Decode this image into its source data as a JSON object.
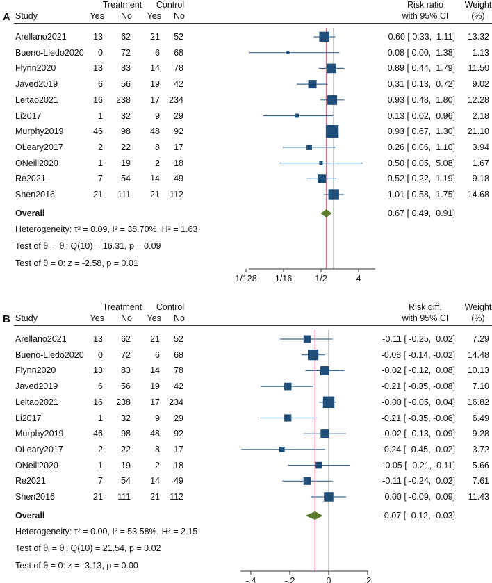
{
  "chart_data": [
    {
      "type": "forest",
      "panel_label": "A",
      "scale": "log2",
      "headers": {
        "study": "Study",
        "treatment": "Treatment",
        "control": "Control",
        "yes": "Yes",
        "no": "No",
        "effect_line1": "Risk ratio",
        "effect_line2": "with 95% CI",
        "weight_line1": "Weight",
        "weight_line2": "(%)"
      },
      "studies": [
        {
          "name": "Arellano2021",
          "t_yes": "13",
          "t_no": "62",
          "c_yes": "21",
          "c_no": "52",
          "est": 0.6,
          "lo": 0.33,
          "hi": 1.11,
          "ci_text": "0.60 [ 0.33,  1.11]",
          "weight": "13.32"
        },
        {
          "name": "Bueno-Lledo2020",
          "t_yes": "0",
          "t_no": "72",
          "c_yes": "6",
          "c_no": "68",
          "est": 0.08,
          "lo": 0.0,
          "hi": 1.38,
          "ci_text": "0.08 [ 0.00,  1.38]",
          "weight": "1.13"
        },
        {
          "name": "Flynn2020",
          "t_yes": "13",
          "t_no": "83",
          "c_yes": "14",
          "c_no": "78",
          "est": 0.89,
          "lo": 0.44,
          "hi": 1.79,
          "ci_text": "0.89 [ 0.44,  1.79]",
          "weight": "11.50"
        },
        {
          "name": "Javed2019",
          "t_yes": "6",
          "t_no": "56",
          "c_yes": "19",
          "c_no": "42",
          "est": 0.31,
          "lo": 0.13,
          "hi": 0.72,
          "ci_text": "0.31 [ 0.13,  0.72]",
          "weight": "9.02"
        },
        {
          "name": "Leitao2021",
          "t_yes": "16",
          "t_no": "238",
          "c_yes": "17",
          "c_no": "234",
          "est": 0.93,
          "lo": 0.48,
          "hi": 1.8,
          "ci_text": "0.93 [ 0.48,  1.80]",
          "weight": "12.28"
        },
        {
          "name": "Li2017",
          "t_yes": "1",
          "t_no": "32",
          "c_yes": "9",
          "c_no": "29",
          "est": 0.13,
          "lo": 0.02,
          "hi": 0.96,
          "ci_text": "0.13 [ 0.02,  0.96]",
          "weight": "2.18"
        },
        {
          "name": "Murphy2019",
          "t_yes": "46",
          "t_no": "98",
          "c_yes": "48",
          "c_no": "92",
          "est": 0.93,
          "lo": 0.67,
          "hi": 1.3,
          "ci_text": "0.93 [ 0.67,  1.30]",
          "weight": "21.10"
        },
        {
          "name": "OLeary2017",
          "t_yes": "2",
          "t_no": "22",
          "c_yes": "8",
          "c_no": "17",
          "est": 0.26,
          "lo": 0.06,
          "hi": 1.1,
          "ci_text": "0.26 [ 0.06,  1.10]",
          "weight": "3.94"
        },
        {
          "name": "ONeill2020",
          "t_yes": "1",
          "t_no": "19",
          "c_yes": "2",
          "c_no": "18",
          "est": 0.5,
          "lo": 0.05,
          "hi": 5.08,
          "ci_text": "0.50 [ 0.05,  5.08]",
          "weight": "1.67"
        },
        {
          "name": "Re2021",
          "t_yes": "7",
          "t_no": "54",
          "c_yes": "14",
          "c_no": "49",
          "est": 0.52,
          "lo": 0.22,
          "hi": 1.19,
          "ci_text": "0.52 [ 0.22,  1.19]",
          "weight": "9.18"
        },
        {
          "name": "Shen2016",
          "t_yes": "21",
          "t_no": "111",
          "c_yes": "21",
          "c_no": "112",
          "est": 1.01,
          "lo": 0.58,
          "hi": 1.75,
          "ci_text": "1.01 [ 0.58,  1.75]",
          "weight": "14.68"
        }
      ],
      "overall": {
        "label": "Overall",
        "est": 0.67,
        "lo": 0.49,
        "hi": 0.91,
        "ci_text": "0.67 [ 0.49,  0.91]"
      },
      "stats": [
        "Heterogeneity: τ² = 0.09, I² = 38.70%, H² = 1.63",
        "Test of θᵢ = θⱼ: Q(10) = 16.31, p = 0.09",
        "Test of θ = 0: z = -2.58, p = 0.01"
      ],
      "null_value": 1,
      "xticks": [
        {
          "value": 0.0078125,
          "label": "1/128"
        },
        {
          "value": 0.0625,
          "label": "1/16"
        },
        {
          "value": 0.5,
          "label": "1/2"
        },
        {
          "value": 4,
          "label": "4"
        }
      ]
    },
    {
      "type": "forest",
      "panel_label": "B",
      "scale": "linear",
      "headers": {
        "study": "Study",
        "treatment": "Treatment",
        "control": "Control",
        "yes": "Yes",
        "no": "No",
        "effect_line1": "Risk diff.",
        "effect_line2": "with 95% CI",
        "weight_line1": "Weight",
        "weight_line2": "(%)"
      },
      "studies": [
        {
          "name": "Arellano2021",
          "t_yes": "13",
          "t_no": "62",
          "c_yes": "21",
          "c_no": "52",
          "est": -0.11,
          "lo": -0.25,
          "hi": 0.02,
          "ci_text": "-0.11 [ -0.25,  0.02]",
          "weight": "7.29"
        },
        {
          "name": "Bueno-Lledo2020",
          "t_yes": "0",
          "t_no": "72",
          "c_yes": "6",
          "c_no": "68",
          "est": -0.08,
          "lo": -0.14,
          "hi": -0.02,
          "ci_text": "-0.08 [ -0.14, -0.02]",
          "weight": "14.48"
        },
        {
          "name": "Flynn2020",
          "t_yes": "13",
          "t_no": "83",
          "c_yes": "14",
          "c_no": "78",
          "est": -0.02,
          "lo": -0.12,
          "hi": 0.08,
          "ci_text": "-0.02 [ -0.12,  0.08]",
          "weight": "10.13"
        },
        {
          "name": "Javed2019",
          "t_yes": "6",
          "t_no": "56",
          "c_yes": "19",
          "c_no": "42",
          "est": -0.21,
          "lo": -0.35,
          "hi": -0.08,
          "ci_text": "-0.21 [ -0.35, -0.08]",
          "weight": "7.10"
        },
        {
          "name": "Leitao2021",
          "t_yes": "16",
          "t_no": "238",
          "c_yes": "17",
          "c_no": "234",
          "est": -0.0,
          "lo": -0.05,
          "hi": 0.04,
          "ci_text": "-0.00 [ -0.05,  0.04]",
          "weight": "16.82"
        },
        {
          "name": "Li2017",
          "t_yes": "1",
          "t_no": "32",
          "c_yes": "9",
          "c_no": "29",
          "est": -0.21,
          "lo": -0.35,
          "hi": -0.06,
          "ci_text": "-0.21 [ -0.35, -0.06]",
          "weight": "6.49"
        },
        {
          "name": "Murphy2019",
          "t_yes": "46",
          "t_no": "98",
          "c_yes": "48",
          "c_no": "92",
          "est": -0.02,
          "lo": -0.13,
          "hi": 0.09,
          "ci_text": "-0.02 [ -0.13,  0.09]",
          "weight": "9.28"
        },
        {
          "name": "OLeary2017",
          "t_yes": "2",
          "t_no": "22",
          "c_yes": "8",
          "c_no": "17",
          "est": -0.24,
          "lo": -0.45,
          "hi": -0.02,
          "ci_text": "-0.24 [ -0.45, -0.02]",
          "weight": "3.72"
        },
        {
          "name": "ONeill2020",
          "t_yes": "1",
          "t_no": "19",
          "c_yes": "2",
          "c_no": "18",
          "est": -0.05,
          "lo": -0.21,
          "hi": 0.11,
          "ci_text": "-0.05 [ -0.21,  0.11]",
          "weight": "5.66"
        },
        {
          "name": "Re2021",
          "t_yes": "7",
          "t_no": "54",
          "c_yes": "14",
          "c_no": "49",
          "est": -0.11,
          "lo": -0.24,
          "hi": 0.02,
          "ci_text": "-0.11 [ -0.24,  0.02]",
          "weight": "7.61"
        },
        {
          "name": "Shen2016",
          "t_yes": "21",
          "t_no": "111",
          "c_yes": "21",
          "c_no": "112",
          "est": 0.0,
          "lo": -0.09,
          "hi": 0.09,
          "ci_text": "0.00 [ -0.09,  0.09]",
          "weight": "11.43"
        }
      ],
      "overall": {
        "label": "Overall",
        "est": -0.07,
        "lo": -0.12,
        "hi": -0.03,
        "ci_text": "-0.07 [ -0.12, -0.03]"
      },
      "stats": [
        "Heterogeneity: τ² = 0.00, I² = 53.58%, H² = 2.15",
        "Test of θᵢ = θⱼ: Q(10) = 21.54, p = 0.02",
        "Test of θ = 0: z = -3.13, p = 0.00"
      ],
      "null_value": 0,
      "xticks": [
        {
          "value": -0.4,
          "label": "-.4"
        },
        {
          "value": -0.2,
          "label": "-.2"
        },
        {
          "value": 0,
          "label": "0"
        },
        {
          "value": 0.2,
          "label": ".2"
        }
      ]
    }
  ],
  "colors": {
    "square": "#1f4e79",
    "ci_line": "#3a6a9a",
    "diamond": "#5a7a2e",
    "overall_line": "#e07088",
    "null_line": "#999999"
  }
}
